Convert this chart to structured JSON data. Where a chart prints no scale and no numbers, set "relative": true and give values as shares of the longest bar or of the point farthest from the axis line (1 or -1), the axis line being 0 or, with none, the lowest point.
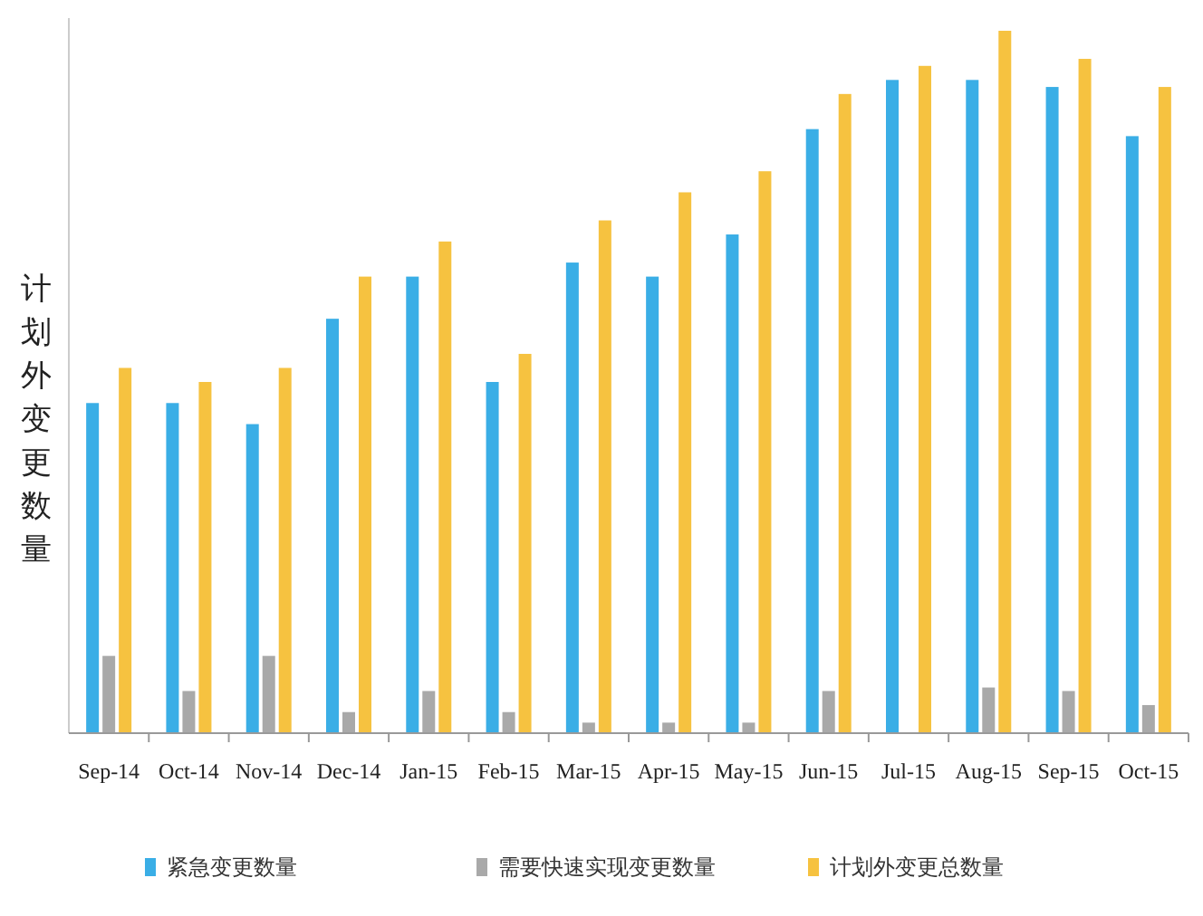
{
  "chart_data": {
    "type": "bar",
    "relative": true,
    "ylabel": "计划外变更数量",
    "legend": "bottom",
    "grid": false,
    "categories": [
      "Sep-14",
      "Oct-14",
      "Nov-14",
      "Dec-14",
      "Jan-15",
      "Feb-15",
      "Mar-15",
      "Apr-15",
      "May-15",
      "Jun-15",
      "Jul-15",
      "Aug-15",
      "Sep-15",
      "Oct-15"
    ],
    "series": [
      {
        "name": "紧急变更数量",
        "color": "#3aaee6",
        "values": [
          0.47,
          0.47,
          0.44,
          0.59,
          0.65,
          0.5,
          0.67,
          0.65,
          0.71,
          0.86,
          0.93,
          0.93,
          0.92,
          0.85
        ]
      },
      {
        "name": "需要快速实现变更数量",
        "color": "#a9a9a9",
        "values": [
          0.11,
          0.06,
          0.11,
          0.03,
          0.06,
          0.03,
          0.015,
          0.015,
          0.015,
          0.06,
          0,
          0.065,
          0.06,
          0.04
        ]
      },
      {
        "name": "计划外变更总数量",
        "color": "#f6c240",
        "values": [
          0.52,
          0.5,
          0.52,
          0.65,
          0.7,
          0.54,
          0.73,
          0.77,
          0.8,
          0.91,
          0.95,
          1,
          0.96,
          0.92
        ]
      }
    ]
  }
}
